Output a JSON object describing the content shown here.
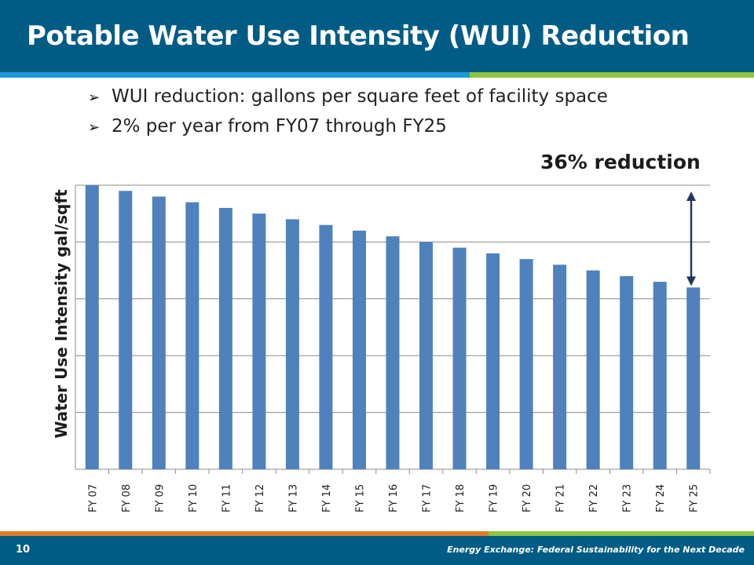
{
  "slide": {
    "title": "Potable Water Use Intensity (WUI) Reduction",
    "bullets": [
      "WUI reduction: gallons per square feet of facility space",
      "2% per year from FY07 through FY25"
    ],
    "annotation": "36% reduction",
    "page_number": "10",
    "footer_text": "Energy Exchange: Federal Sustainability for the Next Decade"
  },
  "colors": {
    "header_bg": "#005c84",
    "bar": "#4f81bd",
    "arrow": "#1f3864"
  },
  "chart_data": {
    "type": "bar",
    "title": "",
    "xlabel": "",
    "ylabel": "Water Use Intensity gal/sqft",
    "categories": [
      "FY 07",
      "FY 08",
      "FY 09",
      "FY 10",
      "FY 11",
      "FY 12",
      "FY 13",
      "FY 14",
      "FY 15",
      "FY 16",
      "FY 17",
      "FY 18",
      "FY 19",
      "FY 20",
      "FY 21",
      "FY 22",
      "FY 23",
      "FY 24",
      "FY 25"
    ],
    "series": [
      {
        "values": [
          100,
          98,
          96,
          94,
          92,
          90,
          88,
          86,
          84,
          82,
          80,
          78,
          76,
          74,
          72,
          70,
          68,
          66,
          64
        ]
      }
    ],
    "ylim": [
      0,
      100
    ],
    "grid": true,
    "legend": "none",
    "annotation": {
      "text": "36% reduction",
      "from_value": 100,
      "to_value": 64
    }
  }
}
